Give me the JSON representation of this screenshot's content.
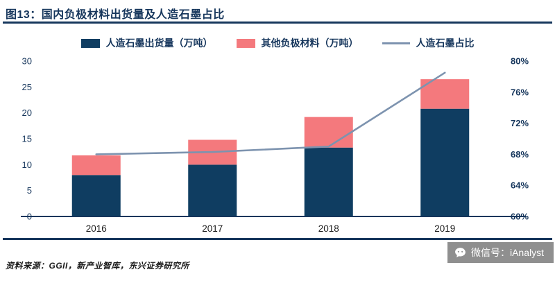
{
  "header": {
    "title": "图13：国内负极材料出货量及人造石墨占比"
  },
  "chart_data": {
    "type": "bar",
    "stacked": true,
    "categories": [
      "2016",
      "2017",
      "2018",
      "2019"
    ],
    "series": [
      {
        "name": "人造石墨出货量（万吨）",
        "type": "bar",
        "color": "#0F3D61",
        "axis": "left",
        "values": [
          8.0,
          10.0,
          13.3,
          20.8
        ]
      },
      {
        "name": "其他负极材料（万吨）",
        "type": "bar",
        "color": "#F4797D",
        "axis": "left",
        "values": [
          3.8,
          4.8,
          5.9,
          5.7
        ]
      },
      {
        "name": "人造石墨占比",
        "type": "line",
        "color": "#7D93AF",
        "axis": "right",
        "values": [
          68,
          68.3,
          69,
          78.5
        ]
      }
    ],
    "left_axis": {
      "min": 0,
      "max": 30,
      "step": 5,
      "ticks": [
        "0",
        "5",
        "10",
        "15",
        "20",
        "25",
        "30"
      ]
    },
    "right_axis": {
      "min": 60,
      "max": 80,
      "step": 4,
      "ticks": [
        "60%",
        "64%",
        "68%",
        "72%",
        "76%",
        "80%"
      ]
    },
    "legend_position": "top",
    "grid": false
  },
  "footer": {
    "source": "资料来源：GGII，新产业智库，东兴证券研究所",
    "wechat": "微信号：iAnalyst"
  },
  "colors": {
    "navy": "#16365C",
    "bar_primary": "#0F3D61",
    "bar_secondary": "#F4797D",
    "line": "#7D93AF",
    "badge_bg": "#8f8f8f"
  }
}
